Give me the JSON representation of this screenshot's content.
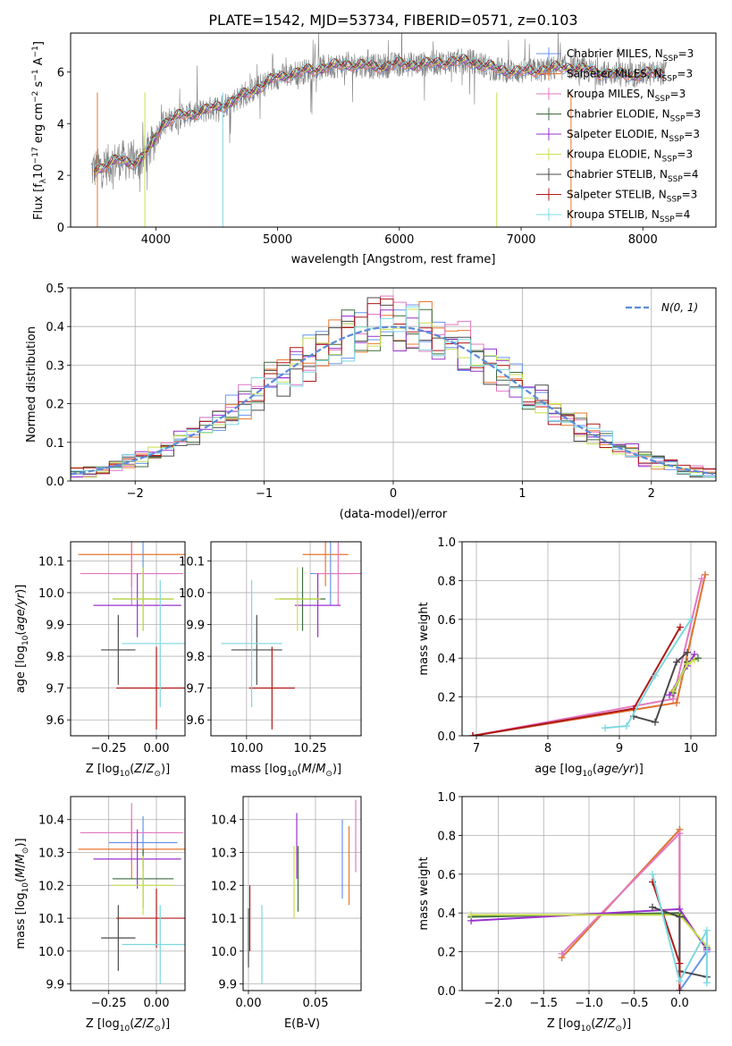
{
  "figure": {
    "title": "PLATE=1542, MJD=53734, FIBERID=0571, z=0.103"
  },
  "series": [
    {
      "name": "Chabrier MILES, N$_{SSP}$=3",
      "label": "Chabrier MILES, N",
      "sub": "SSP",
      "suffix": "=3",
      "color": "#6495ed",
      "age": 10.06,
      "age_err": 0.1,
      "Z": -0.07,
      "Z_err": 0.18,
      "mass": 10.33,
      "mass_err": 0.08,
      "ebv": 0.07,
      "ebv_mass": 10.28,
      "ebv_mass_err": 0.12
    },
    {
      "name": "Salpeter MILES, N$_{SSP}$=3",
      "label": "Salpeter MILES, N",
      "sub": "SSP",
      "suffix": "=3",
      "color": "#e7772c",
      "age": 10.12,
      "age_err": 0.1,
      "Z": -0.13,
      "Z_err": 0.28,
      "mass": 10.31,
      "mass_err": 0.09,
      "ebv": 0.075,
      "ebv_mass": 10.26,
      "ebv_mass_err": 0.12
    },
    {
      "name": "Kroupa MILES, N$_{SSP}$=3",
      "label": "Kroupa MILES, N",
      "sub": "SSP",
      "suffix": "=3",
      "color": "#e377c2",
      "age": 10.06,
      "age_err": 0.1,
      "Z": -0.13,
      "Z_err": 0.27,
      "mass": 10.36,
      "mass_err": 0.09,
      "ebv": 0.08,
      "ebv_mass": 10.35,
      "ebv_mass_err": 0.11
    },
    {
      "name": "Chabrier ELODIE, N$_{SSP}$=3",
      "label": "Chabrier ELODIE, N",
      "sub": "SSP",
      "suffix": "=3",
      "color": "#3d6b3d",
      "age": 9.98,
      "age_err": 0.1,
      "Z": -0.07,
      "Z_err": 0.16,
      "mass": 10.22,
      "mass_err": 0.09,
      "ebv": 0.037,
      "ebv_mass": 10.22,
      "ebv_mass_err": 0.1
    },
    {
      "name": "Salpeter ELODIE, N$_{SSP}$=3",
      "label": "Salpeter ELODIE, N",
      "sub": "SSP",
      "suffix": "=3",
      "color": "#9932cc",
      "age": 9.96,
      "age_err": 0.1,
      "Z": -0.1,
      "Z_err": 0.23,
      "mass": 10.28,
      "mass_err": 0.09,
      "ebv": 0.036,
      "ebv_mass": 10.32,
      "ebv_mass_err": 0.1
    },
    {
      "name": "Kroupa ELODIE, N$_{SSP}$=3",
      "label": "Kroupa ELODIE, N",
      "sub": "SSP",
      "suffix": "=3",
      "color": "#c8e04c",
      "age": 9.98,
      "age_err": 0.1,
      "Z": -0.07,
      "Z_err": 0.16,
      "mass": 10.2,
      "mass_err": 0.09,
      "ebv": 0.034,
      "ebv_mass": 10.21,
      "ebv_mass_err": 0.11
    },
    {
      "name": "Chabrier STELIB, N$_{SSP}$=4",
      "label": "Chabrier STELIB, N",
      "sub": "SSP",
      "suffix": "=4",
      "color": "#4a4a4a",
      "age": 9.82,
      "age_err": 0.11,
      "Z": -0.2,
      "Z_err": 0.09,
      "mass": 10.04,
      "mass_err": 0.1,
      "ebv": 0.0,
      "ebv_mass": 10.04,
      "ebv_mass_err": 0.09
    },
    {
      "name": "Salpeter STELIB, N$_{SSP}$=3",
      "label": "Salpeter STELIB, N",
      "sub": "SSP",
      "suffix": "=3",
      "color": "#b01818",
      "age": 9.7,
      "age_err": 0.13,
      "Z": 0.0,
      "Z_err": 0.21,
      "mass": 10.1,
      "mass_err": 0.09,
      "ebv": 0.001,
      "ebv_mass": 10.1,
      "ebv_mass_err": 0.1
    },
    {
      "name": "Kroupa STELIB, N$_{SSP}$=4",
      "label": "Kroupa STELIB, N",
      "sub": "SSP",
      "suffix": "=4",
      "color": "#7dd8e0",
      "age": 9.84,
      "age_err": 0.2,
      "Z": 0.02,
      "Z_err": 0.2,
      "mass": 10.02,
      "mass_err": 0.12,
      "ebv": 0.01,
      "ebv_mass": 10.02,
      "ebv_mass_err": 0.12
    }
  ],
  "chart_data": [
    {
      "id": "spectrum",
      "type": "line",
      "xlabel": "wavelength [Angstrom, rest frame]",
      "ylabel": "Flux [f$_\\lambda$10$^{-17}$ erg cm$^{-2}$ s$^{-1}$ A$^{-1}$]",
      "xlim": [
        3300,
        8600
      ],
      "ylim": [
        0,
        7.5
      ],
      "xticks": [
        4000,
        5000,
        6000,
        7000,
        8000
      ],
      "yticks": [
        0,
        2,
        4,
        6
      ],
      "legend": "top-right",
      "continuum_shape": {
        "x": [
          3470,
          3600,
          3700,
          3850,
          3950,
          4050,
          4200,
          4400,
          4600,
          4800,
          5000,
          5200,
          5400,
          5600,
          5800,
          6000,
          6200,
          6400,
          6600,
          6800,
          7000,
          7200,
          7400,
          7600,
          7800,
          8000,
          8200
        ],
        "y": [
          2.2,
          2.4,
          2.6,
          2.5,
          3.0,
          4.0,
          4.3,
          4.5,
          4.8,
          5.3,
          5.8,
          6.0,
          6.2,
          6.3,
          6.2,
          6.3,
          6.3,
          6.4,
          6.4,
          6.1,
          6.0,
          6.1,
          6.2,
          6.0,
          5.9,
          5.9,
          6.0
        ]
      }
    },
    {
      "id": "residuals",
      "type": "line",
      "xlabel": "(data-model)/error",
      "ylabel": "Normed distribution",
      "xlim": [
        -2.5,
        2.5
      ],
      "ylim": [
        0,
        0.5
      ],
      "xticks": [
        -2,
        -1,
        0,
        1,
        2
      ],
      "yticks": [
        0.0,
        0.1,
        0.2,
        0.3,
        0.4,
        0.5
      ],
      "legend": "top-right",
      "normal_label": "N(0, 1)",
      "normal_color": "#5b8bd9"
    },
    {
      "id": "age-Z",
      "type": "scatter",
      "xlabel": "Z [log$_{10}$(Z/Z$_\\odot$)]",
      "ylabel": "age  [log$_{10}$(age/yr)]",
      "xlim": [
        -0.45,
        0.15
      ],
      "ylim": [
        9.55,
        10.16
      ],
      "xticks": [
        -0.25,
        0.0
      ],
      "yticks": [
        9.6,
        9.7,
        9.8,
        9.9,
        10.0,
        10.1
      ]
    },
    {
      "id": "age-mass",
      "type": "scatter",
      "xlabel": "mass [log$_{10}$(M/M$_\\odot$)]",
      "xlim": [
        9.86,
        10.45
      ],
      "ylim": [
        9.55,
        10.16
      ],
      "xticks": [
        10.0,
        10.25
      ],
      "yticks": [
        9.6,
        9.7,
        9.8,
        9.9,
        10.0,
        10.1
      ]
    },
    {
      "id": "mw-age",
      "type": "line",
      "xlabel": "age  [log$_{10}$(age/yr)]",
      "ylabel": "mass weight",
      "xlim": [
        6.8,
        10.35
      ],
      "ylim": [
        0,
        1.0
      ],
      "xticks": [
        7,
        8,
        9,
        10
      ],
      "yticks": [
        0.0,
        0.2,
        0.4,
        0.6,
        0.8,
        1.0
      ],
      "series": [
        {
          "name": "Chabrier MILES",
          "x": [
            6.95,
            9.8,
            10.2
          ],
          "y": [
            0.0,
            0.17,
            0.83
          ]
        },
        {
          "name": "Salpeter MILES",
          "x": [
            6.95,
            9.8,
            10.2
          ],
          "y": [
            0.0,
            0.17,
            0.83
          ]
        },
        {
          "name": "Kroupa MILES",
          "x": [
            6.95,
            9.75,
            10.15
          ],
          "y": [
            0.0,
            0.19,
            0.81
          ]
        },
        {
          "name": "Chabrier ELODIE",
          "x": [
            9.75,
            9.95,
            10.1
          ],
          "y": [
            0.22,
            0.38,
            0.4
          ]
        },
        {
          "name": "Salpeter ELODIE",
          "x": [
            9.7,
            9.95,
            10.05
          ],
          "y": [
            0.21,
            0.36,
            0.42
          ]
        },
        {
          "name": "Kroupa ELODIE",
          "x": [
            9.75,
            9.95,
            10.05
          ],
          "y": [
            0.23,
            0.37,
            0.39
          ]
        },
        {
          "name": "Chabrier STELIB",
          "x": [
            9.2,
            9.5,
            9.8,
            9.95
          ],
          "y": [
            0.1,
            0.07,
            0.38,
            0.43
          ]
        },
        {
          "name": "Salpeter STELIB",
          "x": [
            6.95,
            9.2,
            9.85
          ],
          "y": [
            0.0,
            0.14,
            0.56
          ]
        },
        {
          "name": "Kroupa STELIB",
          "x": [
            8.8,
            9.1,
            9.5,
            10.0
          ],
          "y": [
            0.04,
            0.05,
            0.31,
            0.6
          ]
        }
      ]
    },
    {
      "id": "mass-Z",
      "type": "scatter",
      "xlabel": "Z [log$_{10}$(Z/Z$_\\odot$)]",
      "ylabel": "mass [log$_{10}$(M/M$_\\odot$)]",
      "xlim": [
        -0.45,
        0.15
      ],
      "ylim": [
        9.88,
        10.47
      ],
      "xticks": [
        -0.25,
        0.0
      ],
      "yticks": [
        9.9,
        10.0,
        10.1,
        10.2,
        10.3,
        10.4
      ]
    },
    {
      "id": "mass-ebv",
      "type": "scatter",
      "xlabel": "E(B-V)",
      "xlim": [
        -0.004,
        0.084
      ],
      "ylim": [
        9.88,
        10.47
      ],
      "xticks": [
        0.0,
        0.05
      ],
      "yticks": [
        9.9,
        10.0,
        10.1,
        10.2,
        10.3,
        10.4
      ]
    },
    {
      "id": "mw-Z",
      "type": "line",
      "xlabel": "Z [log$_{10}$(Z/Z$_\\odot$)]",
      "ylabel": "mass weight",
      "xlim": [
        -2.4,
        0.4
      ],
      "ylim": [
        0,
        1.0
      ],
      "xticks": [
        -2.0,
        -1.5,
        -1.0,
        -0.5,
        0.0
      ],
      "yticks": [
        0.0,
        0.2,
        0.4,
        0.6,
        0.8,
        1.0
      ],
      "series": [
        {
          "name": "Chabrier MILES",
          "x": [
            -1.3,
            0.0,
            0.0,
            0.3
          ],
          "y": [
            0.17,
            0.83,
            0.0,
            0.2
          ]
        },
        {
          "name": "Salpeter MILES",
          "x": [
            -1.3,
            0.0,
            0.0
          ],
          "y": [
            0.17,
            0.83,
            0.0
          ]
        },
        {
          "name": "Kroupa MILES",
          "x": [
            -1.3,
            0.0,
            0.0
          ],
          "y": [
            0.19,
            0.81,
            0.0
          ]
        },
        {
          "name": "Chabrier ELODIE",
          "x": [
            -2.3,
            0.0,
            0.3
          ],
          "y": [
            0.38,
            0.4,
            0.22
          ]
        },
        {
          "name": "Salpeter ELODIE",
          "x": [
            -2.3,
            0.0,
            0.3
          ],
          "y": [
            0.36,
            0.42,
            0.21
          ]
        },
        {
          "name": "Kroupa ELODIE",
          "x": [
            -2.3,
            0.0,
            0.3
          ],
          "y": [
            0.39,
            0.39,
            0.23
          ]
        },
        {
          "name": "Chabrier STELIB",
          "x": [
            -0.3,
            0.0,
            0.0,
            0.3
          ],
          "y": [
            0.43,
            0.38,
            0.1,
            0.07
          ]
        },
        {
          "name": "Salpeter STELIB",
          "x": [
            -0.3,
            0.0,
            0.0
          ],
          "y": [
            0.56,
            0.14,
            0.0
          ]
        },
        {
          "name": "Kroupa STELIB",
          "x": [
            -0.3,
            0.0,
            0.3,
            0.3
          ],
          "y": [
            0.6,
            0.05,
            0.31,
            0.04
          ]
        }
      ]
    }
  ]
}
